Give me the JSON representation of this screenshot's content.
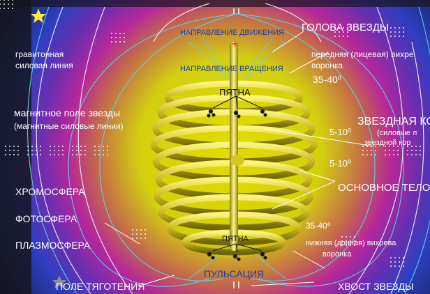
{
  "labels": {
    "direction_of_motion": "НАПРАВЛЕНИЕ ДВИЖЕНИЯ",
    "direction_of_rotation": "НАПРАВЛЕНИЕ ВРАЩЕНИЯ",
    "star_head": "ГОЛОВА ЗВЕЗДЫ",
    "gravitational_line_1": "гравитонная",
    "gravitational_line_2": "силовая линия",
    "front_funnel_1": "передняя (лицевая) вихре",
    "front_funnel_2": "воронка",
    "angle_35_40_top": "35-40⁰",
    "spots_top": "ПЯТНА",
    "magnetic_field_1": "магнитное поле звезды",
    "magnetic_field_2": "(магнитные силовые линии)",
    "star_crown_1": "ЗВЕЗДНАЯ КО",
    "star_crown_2": "(силовые л",
    "star_crown_3": "звездной кор",
    "angle_5_10_a": "5-10⁰",
    "angle_5_10_b": "5-10⁰",
    "main_body": "ОСНОВНОЕ ТЕЛО",
    "chromosphere": "ХРОМОСФЕРА",
    "photosphere": "ФОТОСФЕРА",
    "plasmosphere": "ПЛАЗМОСФЕРА",
    "angle_35_40_bottom": "35-40⁰",
    "spots_bottom": "ПЯТНА",
    "bottom_funnel_1": "нижняя (донная) вихрева",
    "bottom_funnel_2": "воронка",
    "pulsation": "ПУЛЬСАЦИЯ",
    "gravity_field": "ПОЛЕ ТЯГОТЕНИЯ",
    "star_tail": "ХВОСТ ЗВЕЗДЫ",
    "plus_sign": "+"
  },
  "colors": {
    "core_yellow": "#d8d400",
    "coil_gold": "#c9b81c",
    "magenta": "#b5279a",
    "field_line_cyan": "#5fd0e6",
    "blue_text": "#1d3f9e"
  }
}
